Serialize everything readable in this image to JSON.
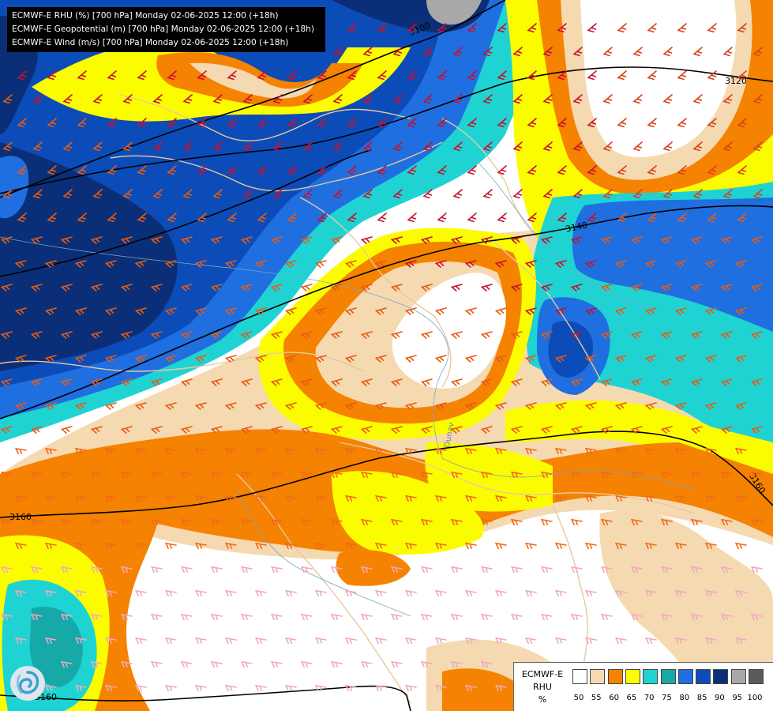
{
  "title_lines": [
    "ECMWF-E RHU (%) [700 hPa] Monday 02-06-2025 12:00 (+18h)",
    "ECMWF-E Geopotential (m) [700 hPa] Monday 02-06-2025 12:00 (+18h)",
    "ECMWF-E Wind (m/s) [700 hPa] Monday 02-06-2025 12:00 (+18h)"
  ],
  "legend": {
    "title_lines": [
      "ECMWF-E",
      "RHU",
      "%"
    ],
    "ticks": [
      "50",
      "55",
      "60",
      "65",
      "70",
      "75",
      "80",
      "85",
      "90",
      "95",
      "100"
    ],
    "colors": [
      "#ffffff",
      "#f5d9b0",
      "#f58200",
      "#fcfc00",
      "#1fd3d3",
      "#17a8a8",
      "#1f6fe0",
      "#0c4cb8",
      "#0a2f78",
      "#a8a8a8",
      "#5a5a5a"
    ]
  },
  "contour_labels": [
    "3100",
    "3120",
    "3140",
    "3160",
    "3160",
    "3160"
  ],
  "river_label": "Dunav"
}
